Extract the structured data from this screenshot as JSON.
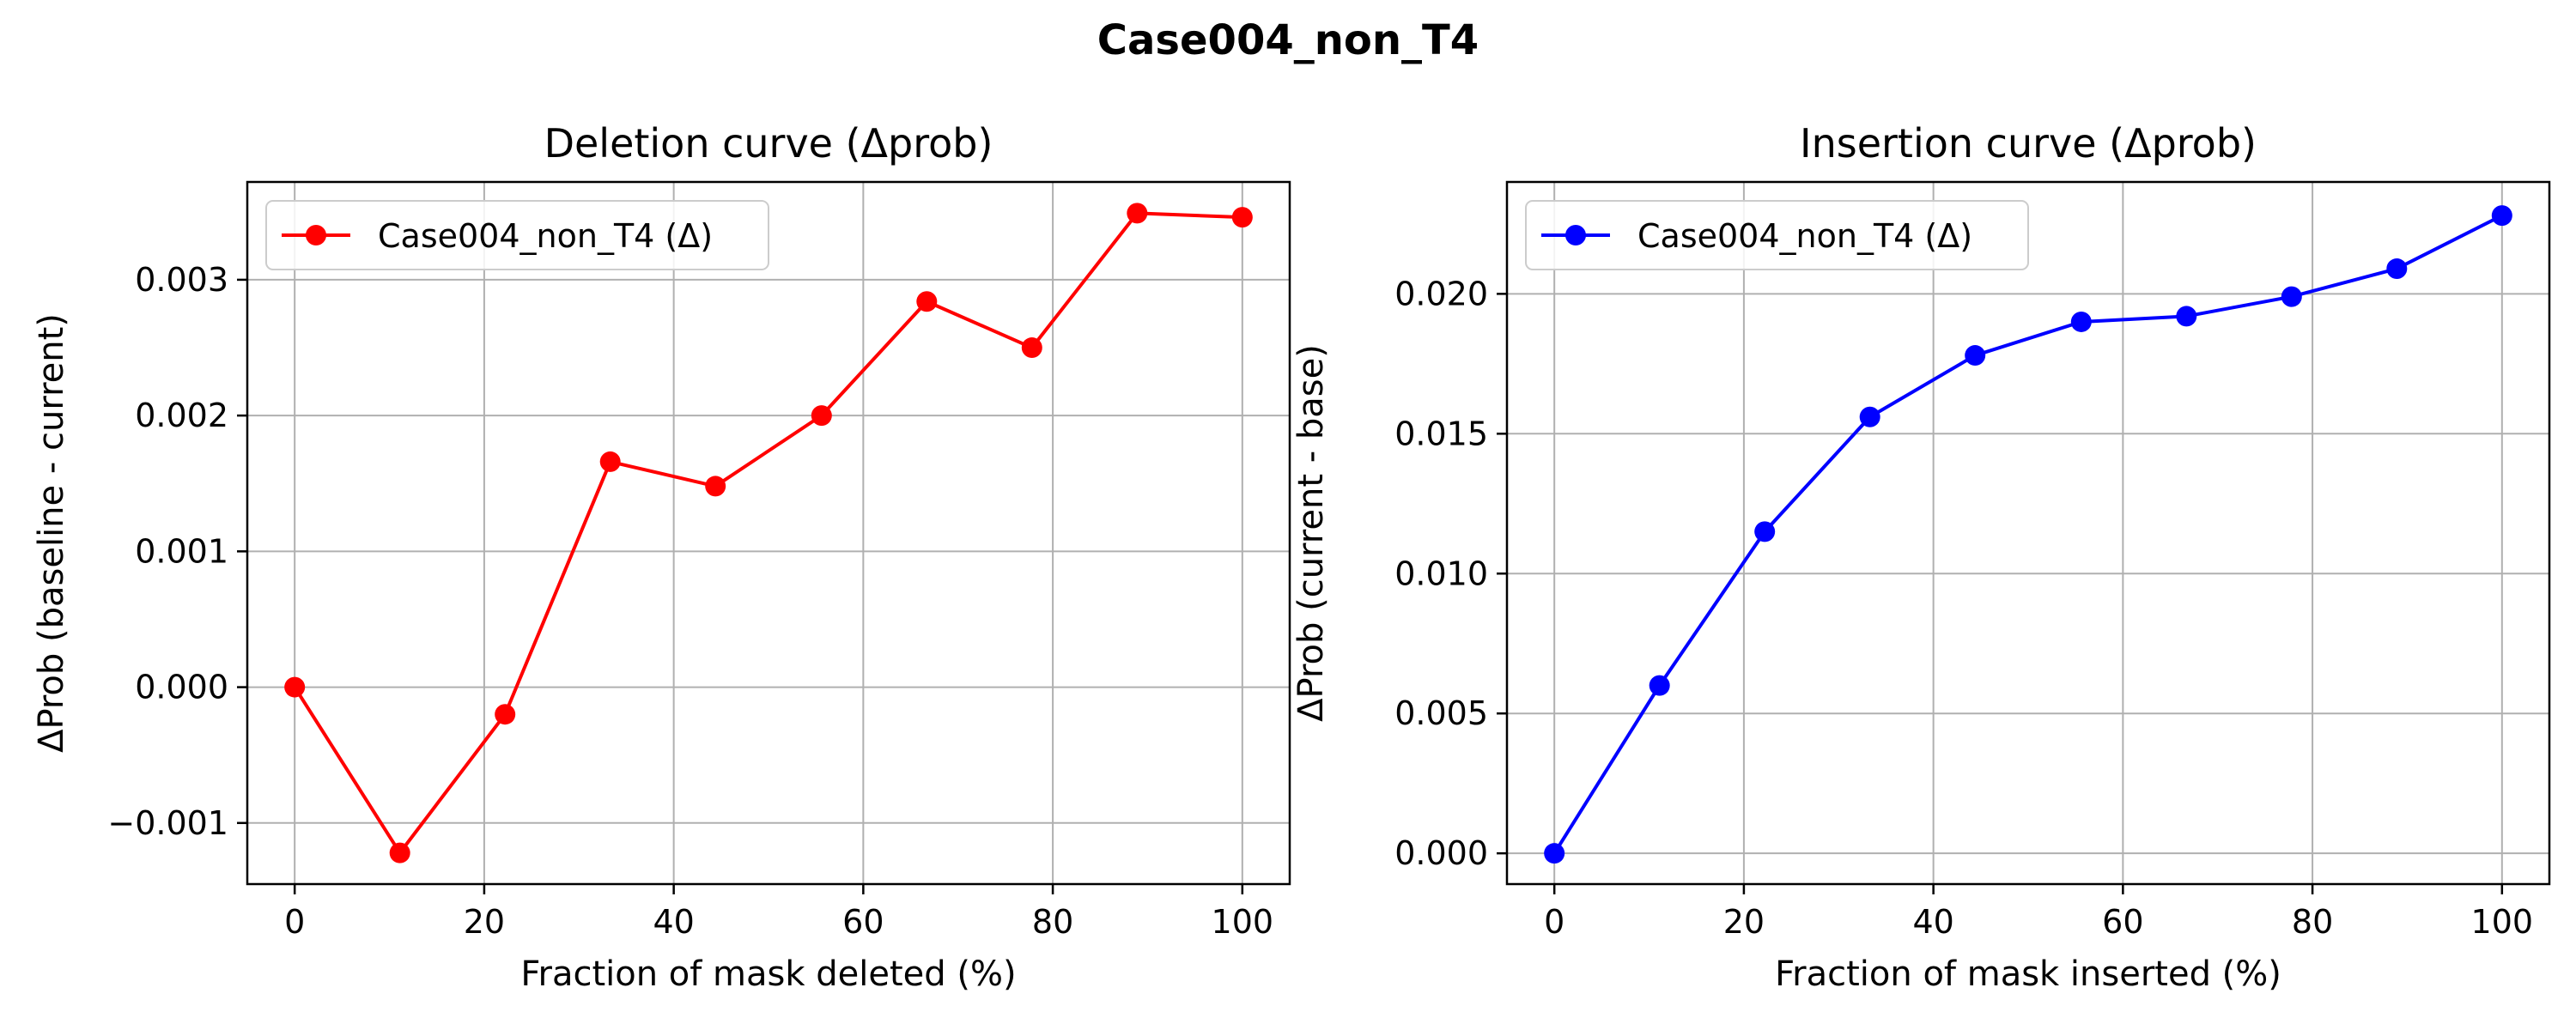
{
  "suptitle": "Case004_non_T4",
  "chart_data": [
    {
      "type": "line",
      "title": "Deletion curve (Δprob)",
      "xlabel": "Fraction of mask deleted (%)",
      "ylabel": "ΔProb (baseline - current)",
      "xlim": [
        -5,
        105
      ],
      "ylim": [
        -0.00145,
        0.00372
      ],
      "xticks": [
        0,
        20,
        40,
        60,
        80,
        100
      ],
      "xtick_labels": [
        "0",
        "20",
        "40",
        "60",
        "80",
        "100"
      ],
      "yticks": [
        -0.001,
        0.0,
        0.001,
        0.002,
        0.003
      ],
      "ytick_labels": [
        "−0.001",
        "0.000",
        "0.001",
        "0.002",
        "0.003"
      ],
      "grid": true,
      "legend_position": "upper-left",
      "series": [
        {
          "name": "Case004_non_T4 (Δ)",
          "color": "#ff0000",
          "marker": "circle",
          "x": [
            0,
            11.1,
            22.2,
            33.3,
            44.4,
            55.6,
            66.7,
            77.8,
            88.9,
            100
          ],
          "y": [
            0.0,
            -0.00122,
            -0.0002,
            0.00166,
            0.00148,
            0.002,
            0.00284,
            0.0025,
            0.00349,
            0.00346
          ]
        }
      ]
    },
    {
      "type": "line",
      "title": "Insertion curve (Δprob)",
      "xlabel": "Fraction of mask inserted (%)",
      "ylabel": "ΔProb (current - base)",
      "xlim": [
        -5,
        105
      ],
      "ylim": [
        -0.0011,
        0.024
      ],
      "xticks": [
        0,
        20,
        40,
        60,
        80,
        100
      ],
      "xtick_labels": [
        "0",
        "20",
        "40",
        "60",
        "80",
        "100"
      ],
      "yticks": [
        0.0,
        0.005,
        0.01,
        0.015,
        0.02
      ],
      "ytick_labels": [
        "0.000",
        "0.005",
        "0.010",
        "0.015",
        "0.020"
      ],
      "grid": true,
      "legend_position": "upper-left",
      "series": [
        {
          "name": "Case004_non_T4 (Δ)",
          "color": "#0000ff",
          "marker": "circle",
          "x": [
            0,
            11.1,
            22.2,
            33.3,
            44.4,
            55.6,
            66.7,
            77.8,
            88.9,
            100
          ],
          "y": [
            0.0,
            0.006,
            0.0115,
            0.0156,
            0.0178,
            0.019,
            0.0192,
            0.0199,
            0.0209,
            0.0228
          ]
        }
      ]
    }
  ]
}
